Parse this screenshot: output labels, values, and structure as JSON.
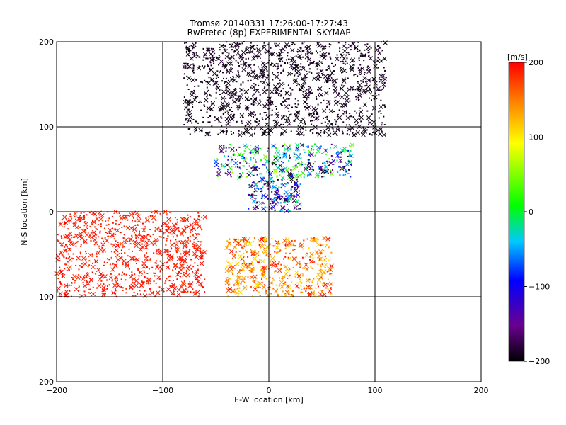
{
  "chart_data": {
    "type": "scatter",
    "title": "Tromsø 20140331 17:26:00-17:27:43",
    "subtitle": "RwPretec (8p) EXPERIMENTAL SKYMAP",
    "xlabel": "E-W location [km]",
    "ylabel": "N-S location [km]",
    "xlim": [
      -200,
      200
    ],
    "ylim": [
      -200,
      200
    ],
    "x_ticks": [
      "-200",
      "-100",
      "0",
      "100",
      "200"
    ],
    "y_ticks": [
      "-200",
      "-100",
      "0",
      "100",
      "200"
    ],
    "grid": true,
    "colorbar": {
      "label": "[m/s]",
      "range": [
        -200,
        200
      ],
      "ticks": [
        "200",
        "100",
        "0",
        "-100",
        "-200"
      ],
      "colors": [
        "#000000",
        "#6a0090",
        "#0000ff",
        "#00c8ff",
        "#00ff00",
        "#ffff00",
        "#ff8000",
        "#ff0000"
      ]
    },
    "point_clusters": [
      {
        "region": "north band",
        "x_range": [
          -50,
          80
        ],
        "y_range": [
          40,
          80
        ],
        "velocity_range": [
          -200,
          60
        ]
      },
      {
        "region": "central",
        "x_range": [
          -20,
          30
        ],
        "y_range": [
          0,
          40
        ],
        "velocity_range": [
          -200,
          0
        ]
      },
      {
        "region": "south-west",
        "x_range": [
          -200,
          -60
        ],
        "y_range": [
          -100,
          0
        ],
        "velocity": 200
      },
      {
        "region": "south",
        "x_range": [
          -40,
          60
        ],
        "y_range": [
          -100,
          -30
        ],
        "velocity_range": [
          100,
          200
        ]
      },
      {
        "region": "north outliers",
        "x_range": [
          -80,
          110
        ],
        "y_range": [
          90,
          200
        ],
        "velocity": -200
      }
    ]
  }
}
